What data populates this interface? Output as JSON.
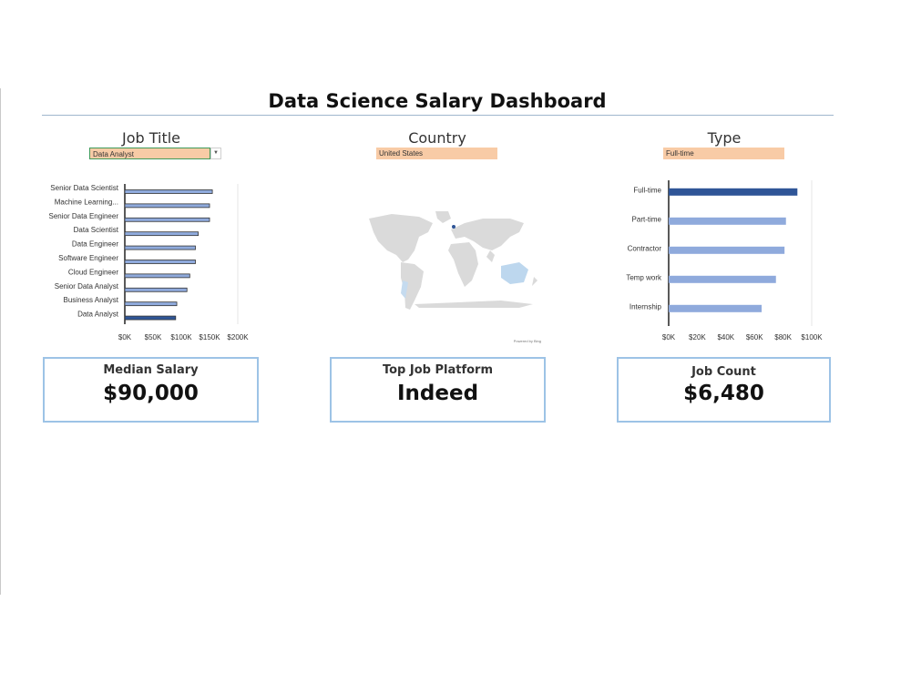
{
  "dashboard": {
    "title": "Data Science Salary Dashboard"
  },
  "filters": {
    "job_title": {
      "label": "Job Title",
      "value": "Data Analyst"
    },
    "country": {
      "label": "Country",
      "value": "United States"
    },
    "type": {
      "label": "Type",
      "value": "Full-time"
    }
  },
  "map": {
    "attribution": "Powered by Bing"
  },
  "cards": [
    {
      "label": "Median Salary",
      "value": "$90,000"
    },
    {
      "label": "Top Job Platform",
      "value": "Indeed"
    },
    {
      "label": "Job Count",
      "value": "$6,480"
    }
  ],
  "colors": {
    "highlight": "#2f5597",
    "bar": "#8faadc",
    "slicer_fill": "#f8cba6",
    "card_border": "#9dc3e6"
  },
  "chart_data": [
    {
      "type": "bar",
      "orientation": "horizontal",
      "categories": [
        "Senior Data Scientist",
        "Machine Learning...",
        "Senior Data Engineer",
        "Data Scientist",
        "Data Engineer",
        "Software Engineer",
        "Cloud Engineer",
        "Senior Data Analyst",
        "Business Analyst",
        "Data Analyst"
      ],
      "values": [
        155000,
        150000,
        150000,
        130000,
        125000,
        125000,
        115000,
        110000,
        92000,
        90000
      ],
      "highlight": "Data Analyst",
      "xlim": [
        0,
        200000
      ],
      "xticks": [
        "$0K",
        "$50K",
        "$100K",
        "$150K",
        "$200K"
      ],
      "grid": false
    },
    {
      "type": "bar",
      "orientation": "horizontal",
      "categories": [
        "Full-time",
        "Part-time",
        "Contractor",
        "Temp work",
        "Internship"
      ],
      "values": [
        90000,
        82000,
        81000,
        75000,
        65000
      ],
      "highlight": "Full-time",
      "xlim": [
        0,
        100000
      ],
      "xticks": [
        "$0K",
        "$20K",
        "$40K",
        "$60K",
        "$80K",
        "$100K"
      ],
      "grid": false
    }
  ]
}
